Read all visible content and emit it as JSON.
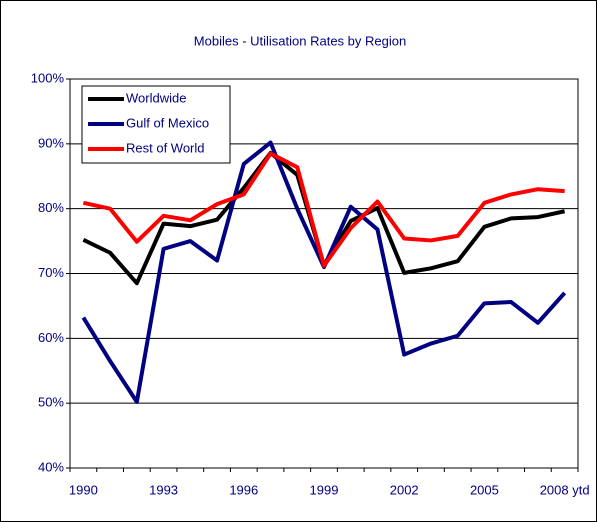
{
  "chart_data": {
    "type": "line",
    "title": "Mobiles - Utilisation Rates by Region",
    "categories": [
      "1990",
      null,
      null,
      "1993",
      null,
      null,
      "1996",
      null,
      null,
      "1999",
      null,
      null,
      "2002",
      null,
      null,
      "2005",
      null,
      null,
      "2008 ytd"
    ],
    "series": [
      {
        "name": "Worldwide",
        "color": "#000000",
        "values": [
          75.2,
          73.2,
          68.5,
          77.7,
          77.3,
          78.3,
          83.2,
          88.6,
          85.2,
          71.3,
          78.1,
          80.1,
          70.1,
          70.8,
          71.9,
          77.2,
          78.5,
          78.7,
          79.6
        ]
      },
      {
        "name": "Gulf of Mexico",
        "color": "#000080",
        "values": [
          63.2,
          56.5,
          50.2,
          73.8,
          75.0,
          72.0,
          86.9,
          90.2,
          80.0,
          71.0,
          80.3,
          76.8,
          57.5,
          59.2,
          60.4,
          65.4,
          65.6,
          62.4,
          67.0
        ]
      },
      {
        "name": "Rest of World",
        "color": "#ff0000",
        "values": [
          80.9,
          80.0,
          74.9,
          78.9,
          78.2,
          80.7,
          82.2,
          88.5,
          86.4,
          71.2,
          77.0,
          81.1,
          75.4,
          75.1,
          75.8,
          80.9,
          82.2,
          83.0,
          82.7
        ]
      }
    ],
    "ylim": [
      40,
      100
    ],
    "yticks": [
      {
        "value": 40,
        "label": "40%"
      },
      {
        "value": 50,
        "label": "50%"
      },
      {
        "value": 60,
        "label": "60%"
      },
      {
        "value": 70,
        "label": "70%"
      },
      {
        "value": 80,
        "label": "80%"
      },
      {
        "value": 90,
        "label": "90%"
      },
      {
        "value": 100,
        "label": "100%"
      }
    ],
    "grid": true,
    "legend": "top-left"
  }
}
